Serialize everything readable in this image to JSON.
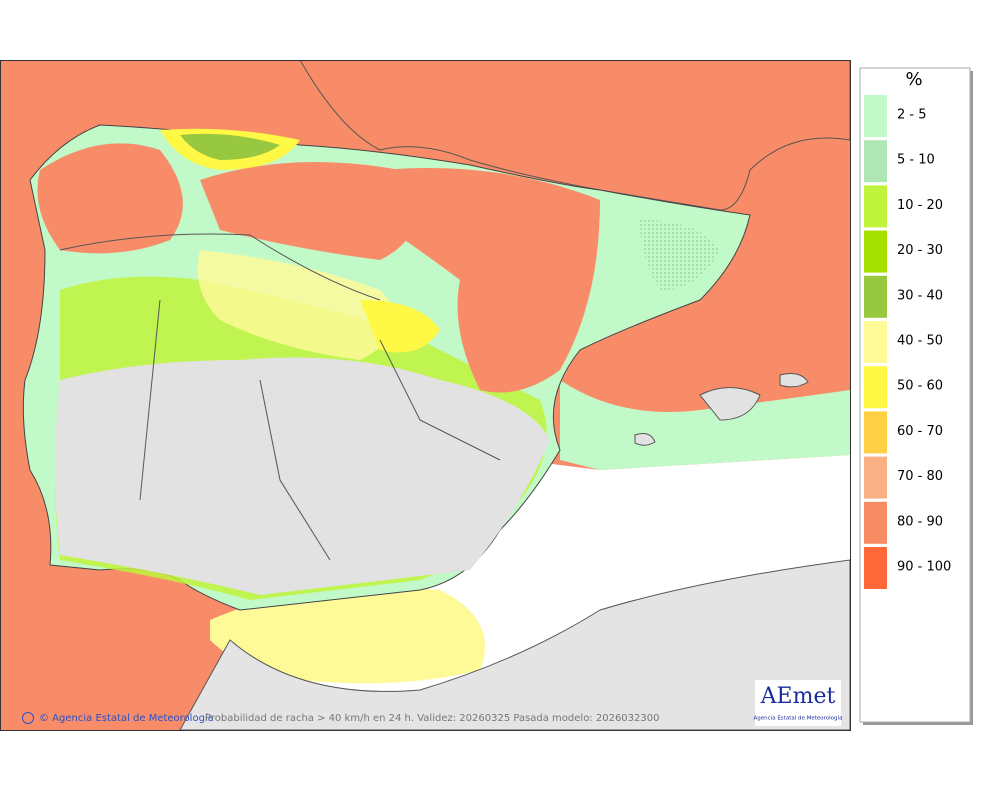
{
  "map": {
    "copyright": "© Agencia Estatal de Meteorología",
    "caption": "Probabilidad de racha > 40 km/h en 24 h. Validez: 20260325 Pasada modelo: 2026032300",
    "logo": {
      "name": "AEmet",
      "subtitle": "Agencia Estatal de Meteorología"
    }
  },
  "legend": {
    "title": "%",
    "items": [
      {
        "label": "2 - 5",
        "color": "#c2f9c8"
      },
      {
        "label": "5 - 10",
        "color": "#aee6b4"
      },
      {
        "label": "10 - 20",
        "color": "#bff33c"
      },
      {
        "label": "20 - 30",
        "color": "#a6e000"
      },
      {
        "label": "30 - 40",
        "color": "#98c840"
      },
      {
        "label": "40 - 50",
        "color": "#fffa98"
      },
      {
        "label": "50 - 60",
        "color": "#fff844"
      },
      {
        "label": "60 - 70",
        "color": "#ffd044"
      },
      {
        "label": "70 - 80",
        "color": "#f8b084"
      },
      {
        "label": "80 - 90",
        "color": "#f88c64"
      },
      {
        "label": "90 - 100",
        "color": "#ff6838"
      }
    ]
  }
}
